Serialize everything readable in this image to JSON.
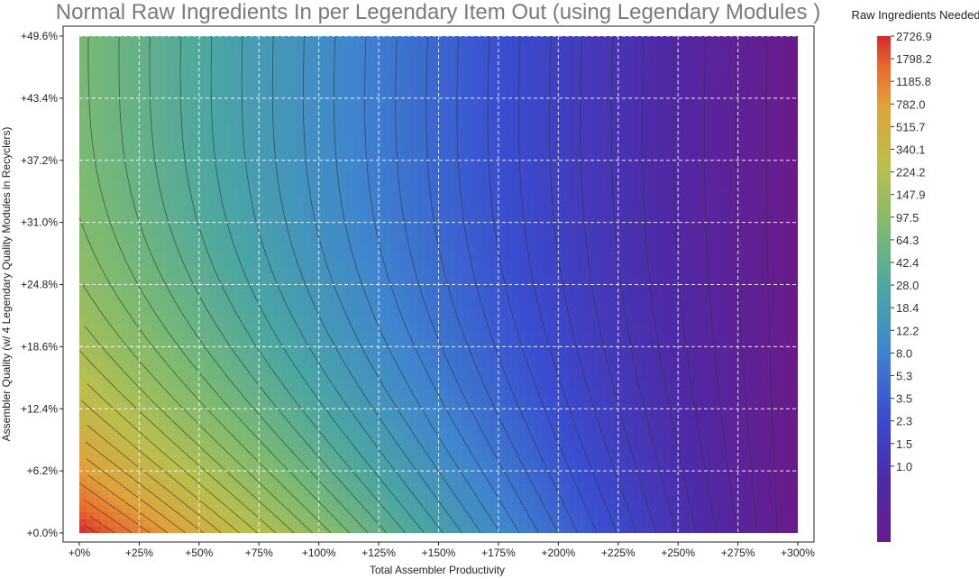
{
  "chart_data": {
    "type": "heatmap",
    "title": "Normal Raw Ingredients In per Legendary Item Out (using Legendary Modules )",
    "xlabel": "Total Assembler Productivity",
    "ylabel": "Assembler Quality   (w/ 4 Legendary Quality Modules in Recyclers)",
    "x_ticks": [
      "+0%",
      "+25%",
      "+50%",
      "+75%",
      "+100%",
      "+125%",
      "+150%",
      "+175%",
      "+200%",
      "+225%",
      "+250%",
      "+275%",
      "+300%"
    ],
    "y_ticks": [
      "+0.0%",
      "+6.2%",
      "+12.4%",
      "+18.6%",
      "+24.8%",
      "+31.0%",
      "+37.2%",
      "+43.4%",
      "+49.6%"
    ],
    "xlim": [
      0,
      300
    ],
    "ylim": [
      0,
      49.6
    ],
    "grid": true,
    "grid_style": "dashed white",
    "contour_lines": true,
    "colorbar": {
      "title": "Raw Ingredients Needed",
      "ticks": [
        "2726.9",
        "1798.2",
        "1185.8",
        "782.0",
        "515.7",
        "340.1",
        "224.2",
        "147.9",
        "97.5",
        "64.3",
        "42.4",
        "28.0",
        "18.4",
        "12.2",
        "8.0",
        "5.3",
        "3.5",
        "2.3",
        "1.5",
        "1.0"
      ],
      "min": 0.5,
      "max": 2726.9,
      "scale": "log"
    },
    "corner_values": {
      "x0_y0": 2726.9,
      "x300_y0": 0.5,
      "x0_y49_6": 97.5,
      "x300_y49_6": 0.5
    }
  }
}
